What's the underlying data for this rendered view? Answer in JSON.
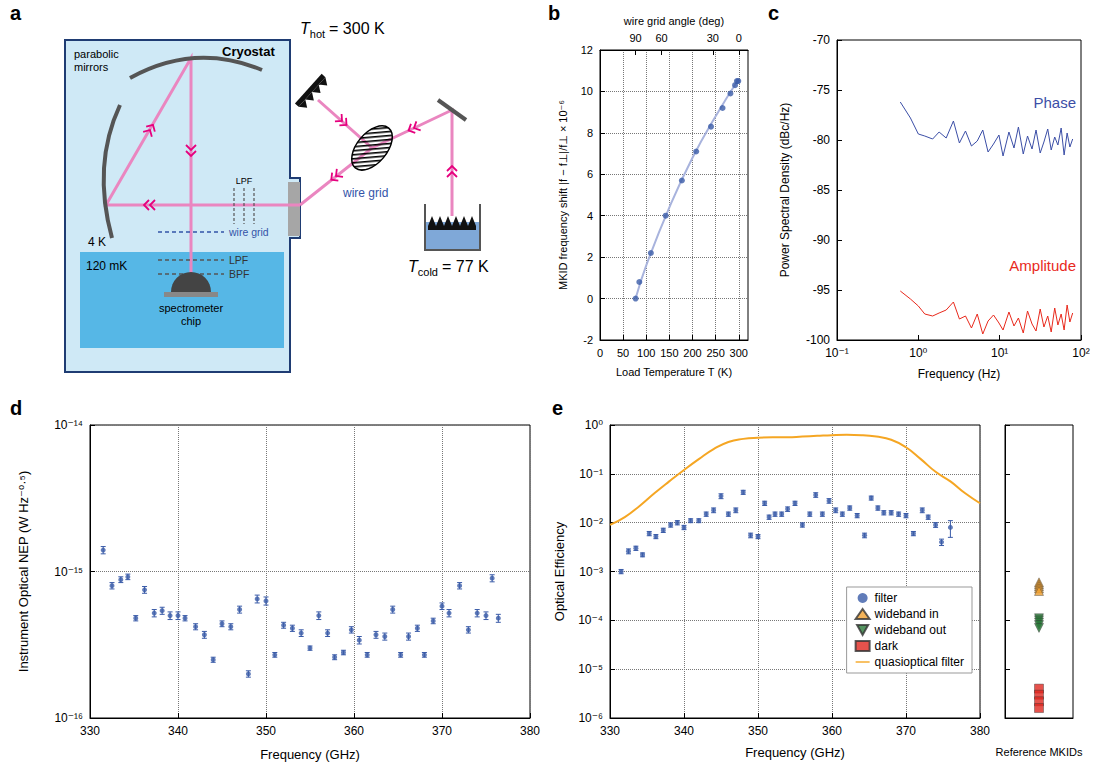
{
  "diagram": {
    "panel": "a",
    "cryostat": "Cryostat",
    "mirrors": "parabolic mirrors",
    "window_filter": "LPF",
    "stage_4k": "4 K",
    "stage_cold": "120 mK",
    "inner_wire_grid": "wire grid",
    "inner_lpf": "LPF",
    "inner_bpf": "BPF",
    "detector": "spectrometer chip",
    "outer_wire_grid": "wire grid",
    "hot_load": {
      "symbol": "T",
      "subscript": "hot",
      "value": "= 300 K"
    },
    "cold_load": {
      "symbol": "T",
      "subscript": "cold",
      "value": "= 77 K"
    }
  },
  "chart_data": [
    {
      "panel": "b",
      "type": "scatter",
      "xlabel": "Load Temperature T (K)",
      "ylabel": "MKID frequency shift |f − f⊥|/f⊥ × 10⁻⁶",
      "x2label": "wire grid angle (deg)",
      "xlim": [
        0,
        320
      ],
      "xticks": [
        0,
        50,
        100,
        150,
        200,
        250,
        300
      ],
      "x2ticks": [
        {
          "value": 77,
          "label": "90"
        },
        {
          "value": 133,
          "label": "60"
        },
        {
          "value": 244,
          "label": "30"
        },
        {
          "value": 300,
          "label": "0"
        }
      ],
      "ylim": [
        -2,
        12
      ],
      "yticks": [
        -2,
        0,
        2,
        4,
        6,
        8,
        10,
        12
      ],
      "grid": true,
      "series": [
        {
          "type": "line",
          "color": "#a8b3dd",
          "line_style": "solid",
          "x": [
            77,
            100,
            150,
            200,
            250,
            300
          ],
          "values": [
            0,
            1.6,
            4.4,
            6.8,
            8.8,
            10.6
          ]
        },
        {
          "type": "scatter",
          "color": "#3a5ba8",
          "marker": "circle",
          "x": [
            77,
            85,
            110,
            142,
            177,
            208,
            240,
            265,
            282,
            292,
            296,
            299
          ],
          "values": [
            0,
            0.8,
            2.2,
            4.0,
            5.7,
            7.1,
            8.3,
            9.2,
            9.9,
            10.3,
            10.5,
            10.5
          ]
        }
      ]
    },
    {
      "panel": "c",
      "type": "line",
      "xlabel": "Frequency (Hz)",
      "ylabel": "Power Spectral Density (dBc/Hz)",
      "log": "x",
      "xlim": [
        0.1,
        100
      ],
      "xticks": [
        {
          "value": 0.1,
          "label": "10⁻¹"
        },
        {
          "value": 1,
          "label": "10⁰"
        },
        {
          "value": 10,
          "label": "10¹"
        },
        {
          "value": 100,
          "label": "10²"
        }
      ],
      "ylim": [
        -100,
        -70
      ],
      "yticks": [
        -100,
        -95,
        -90,
        -85,
        -80,
        -75,
        -70
      ],
      "grid": false,
      "x": [
        0.6,
        0.8,
        1.0,
        1.2,
        1.5,
        1.8,
        2.2,
        2.7,
        3.2,
        3.8,
        4.5,
        5.3,
        6.2,
        7.2,
        8.4,
        9.8,
        11,
        13,
        15,
        17,
        19.5,
        22,
        25,
        28,
        31.5,
        35,
        39,
        43,
        47.5,
        52,
        57,
        62,
        67.5,
        73,
        79
      ],
      "series": [
        {
          "name": "Phase",
          "color": "#3b4ea6",
          "values": [
            -76.2,
            -77.8,
            -79.4,
            -79.6,
            -79.9,
            -79.2,
            -79.8,
            -78.1,
            -80.3,
            -79.1,
            -80.6,
            -80.1,
            -79.0,
            -81.2,
            -80.4,
            -79.5,
            -81.6,
            -79.2,
            -80.8,
            -78.7,
            -81.4,
            -79.6,
            -80.9,
            -79.0,
            -81.3,
            -80.2,
            -78.9,
            -81.0,
            -79.7,
            -80.5,
            -78.8,
            -81.5,
            -79.3,
            -80.7,
            -79.9
          ]
        },
        {
          "name": "Amplitude",
          "color": "#e8291c",
          "values": [
            -95.1,
            -95.9,
            -96.6,
            -97.4,
            -97.6,
            -97.3,
            -97.0,
            -96.2,
            -97.9,
            -97.6,
            -98.8,
            -97.4,
            -99.4,
            -98.1,
            -97.5,
            -98.3,
            -99.0,
            -97.2,
            -98.6,
            -97.8,
            -99.3,
            -97.1,
            -98.4,
            -99.1,
            -96.9,
            -98.7,
            -97.6,
            -99.2,
            -96.8,
            -98.5,
            -97.4,
            -99.0,
            -96.5,
            -98.2,
            -97.3
          ]
        }
      ]
    },
    {
      "panel": "d",
      "type": "scatter",
      "xlabel": "Frequency (GHz)",
      "ylabel": "Instrument Optical NEP (W Hz⁻⁰·⁵)",
      "log": "y",
      "xlim": [
        330,
        380
      ],
      "xticks": [
        330,
        340,
        350,
        360,
        370,
        380
      ],
      "ylim": [
        1e-16,
        1e-14
      ],
      "yticks": [
        {
          "value": 1e-16,
          "label": "10⁻¹⁶"
        },
        {
          "value": 1e-15,
          "label": "10⁻¹⁵"
        },
        {
          "value": 1e-14,
          "label": "10⁻¹⁴"
        }
      ],
      "grid": true,
      "series": [
        {
          "type": "scatter",
          "color": "#3a5ba8",
          "marker": "circle",
          "x": [
            331.5,
            332.5,
            333.5,
            334.3,
            335.2,
            336.2,
            337.3,
            338.2,
            339.1,
            340,
            340.8,
            342,
            343,
            344,
            345,
            346,
            347,
            348,
            349,
            350,
            351,
            352,
            353,
            354,
            355,
            356,
            357,
            357.8,
            358.8,
            359.7,
            360.6,
            361.5,
            362.5,
            363.5,
            364.4,
            365.3,
            366.2,
            367.2,
            368,
            369,
            370,
            370.8,
            372,
            373,
            374,
            375,
            375.7,
            376.4
          ],
          "values": [
            1.4e-15,
            8e-16,
            8.8e-16,
            9.2e-16,
            4.8e-16,
            7.5e-16,
            5.2e-16,
            5.4e-16,
            5e-16,
            5e-16,
            4.8e-16,
            4.2e-16,
            3.7e-16,
            2.5e-16,
            4.4e-16,
            4.2e-16,
            5.5e-16,
            2e-16,
            6.5e-16,
            6.3e-16,
            2.7e-16,
            4.3e-16,
            4.1e-16,
            3.8e-16,
            3e-16,
            5e-16,
            3.8e-16,
            2.6e-16,
            2.8e-16,
            4e-16,
            3.4e-16,
            2.7e-16,
            3.7e-16,
            3.6e-16,
            5.5e-16,
            2.7e-16,
            3.6e-16,
            4.1e-16,
            2.7e-16,
            4.6e-16,
            5.8e-16,
            5.2e-16,
            8e-16,
            4e-16,
            5.2e-16,
            5e-16,
            9e-16,
            4.8e-16
          ],
          "errors": [
            8e-17,
            4e-17,
            4e-17,
            4e-17,
            2e-17,
            4e-17,
            3e-17,
            3e-17,
            3e-17,
            3e-17,
            2e-17,
            2e-17,
            2e-17,
            1e-17,
            2e-17,
            2e-17,
            3e-17,
            1e-17,
            4e-17,
            4e-17,
            1e-17,
            2e-17,
            2e-17,
            2e-17,
            1e-17,
            3e-17,
            2e-17,
            1e-17,
            1e-17,
            2e-17,
            2e-17,
            1e-17,
            2e-17,
            2e-17,
            3e-17,
            1e-17,
            2e-17,
            2e-17,
            1e-17,
            2e-17,
            3e-17,
            3e-17,
            4e-17,
            2e-17,
            3e-17,
            3e-17,
            5e-17,
            3e-17
          ]
        }
      ]
    },
    {
      "panel": "e",
      "type": "scatter",
      "xlabel": "Frequency (GHz)",
      "ylabel": "Optical Efficiency",
      "log": "y",
      "xlim": [
        330,
        380
      ],
      "xticks": [
        330,
        340,
        350,
        360,
        370,
        380
      ],
      "ylim": [
        1e-06,
        1
      ],
      "yticks": [
        {
          "value": 1e-06,
          "label": "10⁻⁶"
        },
        {
          "value": 1e-05,
          "label": "10⁻⁵"
        },
        {
          "value": 0.0001,
          "label": "10⁻⁴"
        },
        {
          "value": 0.001,
          "label": "10⁻³"
        },
        {
          "value": 0.01,
          "label": "10⁻²"
        },
        {
          "value": 0.1,
          "label": "10⁻¹"
        },
        {
          "value": 1,
          "label": "10⁰"
        }
      ],
      "grid": true,
      "legend": "lower right",
      "side": {
        "xlabel": "Reference MKIDs",
        "tick_labels": false
      },
      "series": [
        {
          "name": "filter",
          "type": "scatter",
          "color": "#3a5ba8",
          "marker": "circle",
          "x": [
            331.5,
            332.5,
            333.5,
            334.4,
            335.3,
            336.2,
            337.2,
            338.2,
            339.1,
            340,
            340.9,
            342,
            343,
            344,
            345,
            346,
            347,
            348,
            349,
            350,
            350.9,
            351.5,
            352.3,
            353.2,
            354,
            355,
            356,
            357,
            357.8,
            358.7,
            359.6,
            360.5,
            361.4,
            362.4,
            363.4,
            364.4,
            365.3,
            366.2,
            367,
            368,
            369,
            370,
            371,
            372.2,
            373,
            374,
            374.8,
            376
          ],
          "values": [
            0.001,
            0.0026,
            0.003,
            0.0022,
            0.006,
            0.0052,
            0.007,
            0.009,
            0.01,
            0.008,
            0.011,
            0.011,
            0.015,
            0.018,
            0.035,
            0.015,
            0.018,
            0.042,
            0.0055,
            0.0052,
            0.025,
            0.013,
            0.015,
            0.015,
            0.019,
            0.025,
            0.009,
            0.015,
            0.037,
            0.015,
            0.028,
            0.018,
            0.015,
            0.02,
            0.014,
            0.0055,
            0.032,
            0.02,
            0.016,
            0.016,
            0.015,
            0.014,
            0.006,
            0.018,
            0.013,
            0.009,
            0.004,
            0.008
          ],
          "errors": [
            0.0001,
            0.0003,
            0.0003,
            0.0002,
            0.0006,
            0.0005,
            0.0007,
            0.0009,
            0.001,
            0.0008,
            0.001,
            0.001,
            0.0015,
            0.002,
            0.004,
            0.0015,
            0.002,
            0.004,
            0.0006,
            0.0005,
            0.0025,
            0.0013,
            0.0015,
            0.0015,
            0.002,
            0.0025,
            0.0009,
            0.0015,
            0.004,
            0.0015,
            0.003,
            0.002,
            0.0015,
            0.002,
            0.0014,
            0.0006,
            0.003,
            0.002,
            0.0016,
            0.0016,
            0.0015,
            0.0014,
            0.0006,
            0.002,
            0.0013,
            0.001,
            0.0006,
            0.003
          ]
        },
        {
          "name": "wideband in",
          "type": "scatter",
          "axis": "side",
          "color": "#f0a030",
          "marker": "triangle",
          "values": [
            0.0006,
            0.00055,
            0.0005,
            0.00045,
            0.0004
          ]
        },
        {
          "name": "wideband out",
          "type": "scatter",
          "axis": "side",
          "color": "#2a7a3a",
          "marker": "triangle-down",
          "values": [
            0.00011,
            0.0001,
            9e-05,
            8e-05,
            7e-05
          ]
        },
        {
          "name": "dark",
          "type": "scatter",
          "axis": "side",
          "color": "#e0271f",
          "marker": "square",
          "values": [
            4e-06,
            3e-06,
            2.2e-06,
            1.6e-06
          ]
        },
        {
          "name": "quasioptical filter",
          "type": "line",
          "color": "#f5a623",
          "line_style": "solid",
          "x": [
            330,
            332,
            334,
            336,
            338,
            340,
            342,
            344,
            346,
            348,
            350,
            352,
            354,
            356,
            358,
            360,
            362,
            364,
            366,
            368,
            370,
            372,
            374,
            376,
            378,
            380
          ],
          "values": [
            0.009,
            0.013,
            0.022,
            0.04,
            0.07,
            0.12,
            0.2,
            0.32,
            0.45,
            0.52,
            0.55,
            0.56,
            0.56,
            0.58,
            0.6,
            0.62,
            0.63,
            0.62,
            0.58,
            0.5,
            0.35,
            0.2,
            0.11,
            0.07,
            0.04,
            0.025
          ]
        }
      ]
    }
  ]
}
